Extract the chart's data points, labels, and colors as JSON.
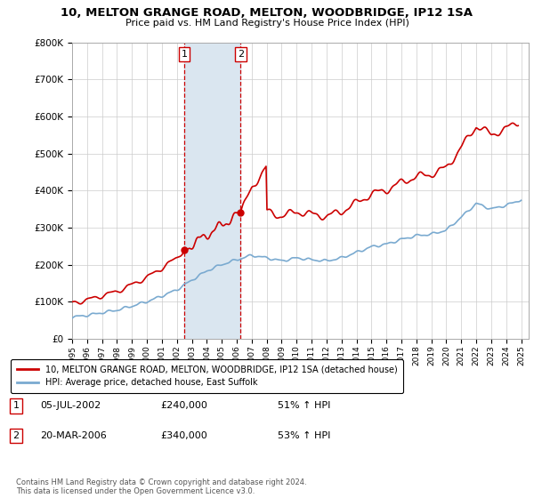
{
  "title": "10, MELTON GRANGE ROAD, MELTON, WOODBRIDGE, IP12 1SA",
  "subtitle": "Price paid vs. HM Land Registry's House Price Index (HPI)",
  "footer": "Contains HM Land Registry data © Crown copyright and database right 2024.\nThis data is licensed under the Open Government Licence v3.0.",
  "legend_line1": "10, MELTON GRANGE ROAD, MELTON, WOODBRIDGE, IP12 1SA (detached house)",
  "legend_line2": "HPI: Average price, detached house, East Suffolk",
  "purchase1_date": "05-JUL-2002",
  "purchase1_price": "£240,000",
  "purchase1_hpi": "51% ↑ HPI",
  "purchase1_year": 2002.5,
  "purchase1_value": 240000,
  "purchase2_date": "20-MAR-2006",
  "purchase2_price": "£340,000",
  "purchase2_hpi": "53% ↑ HPI",
  "purchase2_year": 2006.25,
  "purchase2_value": 340000,
  "ylim": [
    0,
    800000
  ],
  "xlim_min": 1995,
  "xlim_max": 2025.5,
  "red_color": "#cc0000",
  "blue_color": "#7aaad0",
  "shade_color": "#dae6f0",
  "background_color": "#ffffff",
  "grid_color": "#cccccc",
  "hpi_years": [
    1995,
    1996,
    1997,
    1998,
    1999,
    2000,
    2001,
    2002,
    2003,
    2004,
    2005,
    2006,
    2007,
    2008,
    2009,
    2010,
    2011,
    2012,
    2013,
    2014,
    2015,
    2016,
    2017,
    2018,
    2019,
    2020,
    2021,
    2022,
    2023,
    2024,
    2025
  ],
  "hpi_values": [
    58000,
    63000,
    70000,
    77000,
    88000,
    100000,
    115000,
    132000,
    158000,
    183000,
    200000,
    213000,
    225000,
    218000,
    210000,
    218000,
    213000,
    210000,
    218000,
    233000,
    248000,
    255000,
    268000,
    278000,
    282000,
    293000,
    328000,
    365000,
    350000,
    360000,
    375000
  ]
}
